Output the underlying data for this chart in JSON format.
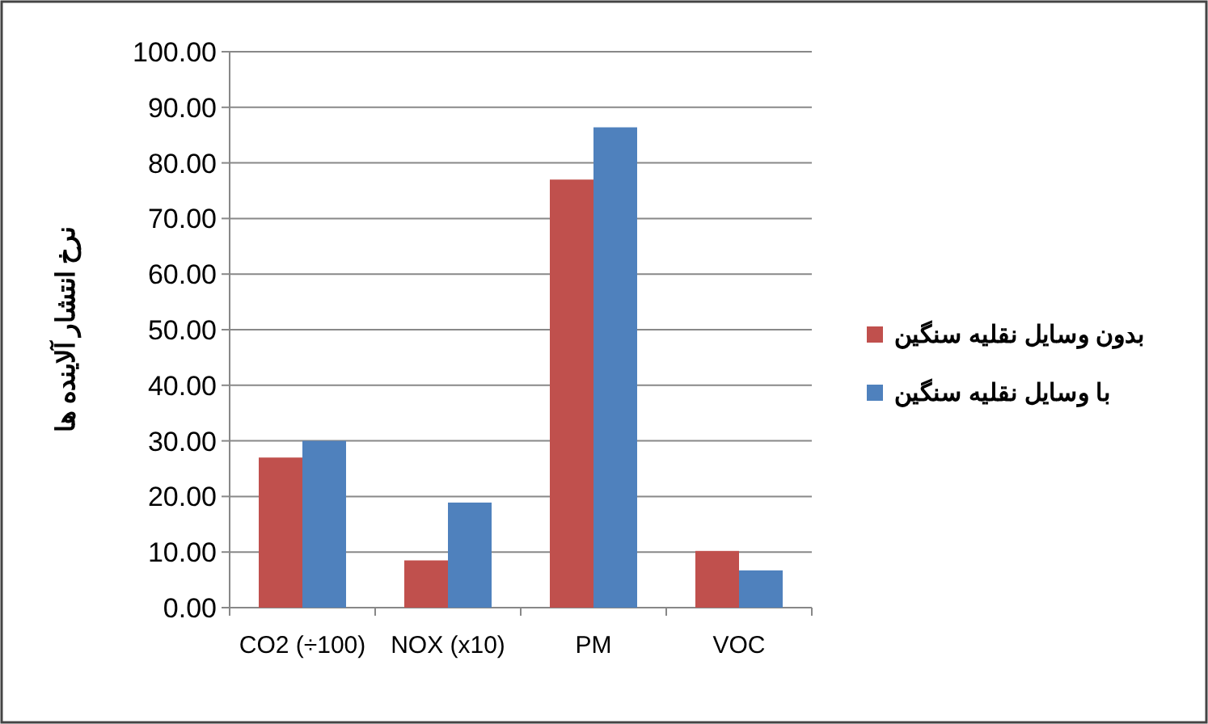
{
  "chart_data": {
    "type": "bar",
    "ylabel": "نرخ انتشار آلاینده ها",
    "categories": [
      "CO2 (÷100)",
      "NOX (x10)",
      "PM",
      "VOC"
    ],
    "series": [
      {
        "name": "بدون وسایل نقلیه سنگین",
        "color": "#c0504d",
        "values": [
          27,
          8.5,
          77,
          10.2
        ]
      },
      {
        "name": "با وسایل نقلیه سنگین",
        "color": "#4f81bd",
        "values": [
          30,
          18.9,
          86.4,
          6.7
        ]
      }
    ],
    "ylim": [
      0,
      100
    ],
    "yticks": [
      {
        "value": 0,
        "label": "0.00"
      },
      {
        "value": 10,
        "label": "10.00"
      },
      {
        "value": 20,
        "label": "20.00"
      },
      {
        "value": 30,
        "label": "30.00"
      },
      {
        "value": 40,
        "label": "40.00"
      },
      {
        "value": 50,
        "label": "50.00"
      },
      {
        "value": 60,
        "label": "60.00"
      },
      {
        "value": 70,
        "label": "70.00"
      },
      {
        "value": 80,
        "label": "80.00"
      },
      {
        "value": 90,
        "label": "90.00"
      },
      {
        "value": 100,
        "label": "100.00"
      }
    ],
    "grid": "y",
    "legend": "right"
  }
}
